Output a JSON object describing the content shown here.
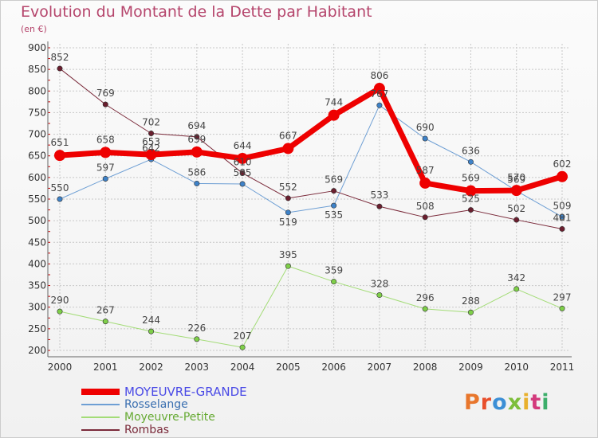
{
  "title": "Evolution du Montant de la Dette par Habitant",
  "subtitle": "(en €)",
  "logo": {
    "text": "Proxiti",
    "letter_colors": [
      "#e8762c",
      "#e84f2c",
      "#3c8fd6",
      "#7dbe3a",
      "#e8b02c",
      "#d33a7c",
      "#3cae6a"
    ]
  },
  "colors": {
    "axis": "#666666",
    "grid": "#c8c8c8",
    "tick_text": "#333333",
    "data_label": "#444444",
    "tick_mark_red": "#cc0000"
  },
  "chart_data": {
    "type": "line",
    "x": [
      "2000",
      "2001",
      "2002",
      "2003",
      "2004",
      "2005",
      "2006",
      "2007",
      "2008",
      "2009",
      "2010",
      "2011"
    ],
    "ylim": [
      200,
      900
    ],
    "yticks": [
      200,
      250,
      300,
      350,
      400,
      450,
      500,
      550,
      600,
      650,
      700,
      750,
      800,
      850,
      900
    ],
    "grid": true,
    "legend_position": "bottom-left",
    "series": [
      {
        "name": "MOYEUVRE-GRANDE",
        "color": "#ee0000",
        "marker": "#ee0000",
        "legend_text_color": "#4a4ae6",
        "width": 7,
        "values": [
          651,
          658,
          653,
          659,
          644,
          667,
          744,
          806,
          587,
          569,
          570,
          602
        ]
      },
      {
        "name": "Rosselange",
        "color": "#6e9fd4",
        "marker": "#3e82c8",
        "legend_text_color": "#3a6fb0",
        "width": 1,
        "values": [
          550,
          597,
          642,
          586,
          585,
          519,
          535,
          767,
          690,
          636,
          569,
          509
        ]
      },
      {
        "name": "Moyeuvre-Petite",
        "color": "#a3dc77",
        "marker": "#7ecf48",
        "legend_text_color": "#66aa33",
        "width": 1,
        "values": [
          290,
          267,
          244,
          226,
          207,
          395,
          359,
          328,
          296,
          288,
          342,
          297
        ]
      },
      {
        "name": "Rombas",
        "color": "#7a2a3a",
        "marker": "#6a1e2e",
        "legend_text_color": "#7a2a3a",
        "width": 1,
        "values": [
          852,
          769,
          702,
          694,
          610,
          552,
          569,
          533,
          508,
          525,
          502,
          481
        ]
      }
    ]
  }
}
